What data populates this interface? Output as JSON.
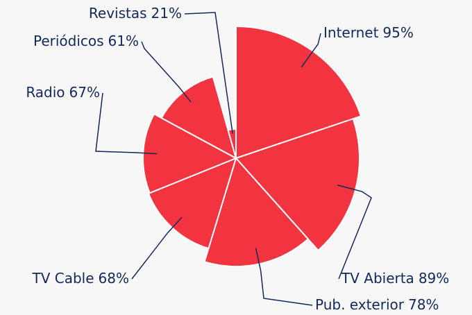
{
  "chart_data": {
    "type": "polar-pie",
    "categories": [
      "Internet",
      "TV Abierta",
      "Pub. exterior",
      "TV Cable",
      "Radio",
      "Periódicos",
      "Revistas"
    ],
    "values": [
      95,
      89,
      78,
      68,
      67,
      61,
      21
    ],
    "value_labels": [
      "95%",
      "89%",
      "78%",
      "68%",
      "67%",
      "61%",
      "21%"
    ],
    "color": "#f23441"
  }
}
